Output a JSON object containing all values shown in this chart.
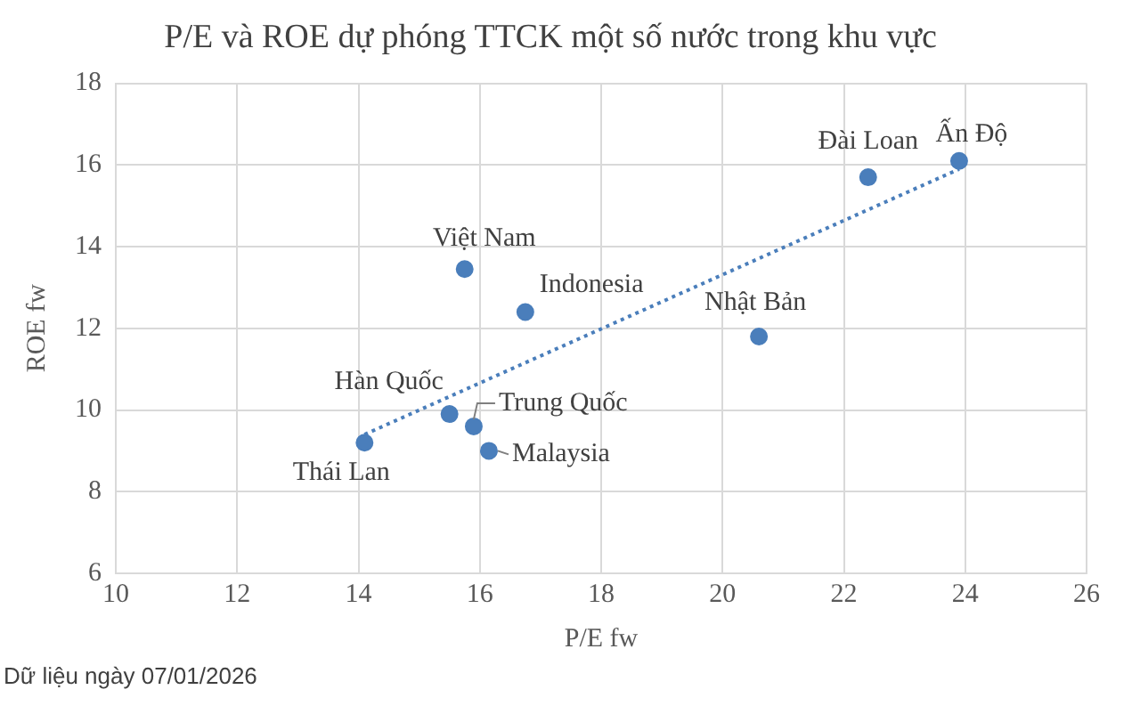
{
  "chart_data": {
    "type": "scatter",
    "title": "P/E và ROE dự phóng TTCK một số nước trong khu vực",
    "xlabel": "P/E fw",
    "ylabel": "ROE fw",
    "xlim": [
      10,
      26
    ],
    "xticks": [
      10,
      12,
      14,
      16,
      18,
      20,
      22,
      24,
      26
    ],
    "ylim": [
      6,
      18
    ],
    "yticks": [
      6,
      8,
      10,
      12,
      14,
      16,
      18
    ],
    "grid": true,
    "legend": false,
    "marker": "circle",
    "series": [
      {
        "type": "scatter",
        "color": "#4a7ebb",
        "x": [
          14.1,
          15.5,
          15.9,
          16.15,
          15.75,
          16.75,
          20.6,
          22.4,
          23.9
        ],
        "values": [
          9.2,
          9.9,
          9.6,
          9.0,
          13.45,
          12.4,
          11.8,
          15.7,
          16.1
        ]
      },
      {
        "type": "line",
        "color": "#4a7ebb",
        "line_style": "dotted",
        "marker": "none",
        "x": [
          14.1,
          23.9
        ],
        "values": [
          9.4,
          15.9
        ]
      }
    ],
    "annotations": [
      {
        "text": "Thái Lan",
        "x": 14.1,
        "y": 9.2
      },
      {
        "text": "Hàn Quốc",
        "x": 15.5,
        "y": 9.9
      },
      {
        "text": "Trung Quốc",
        "x": 15.9,
        "y": 9.6
      },
      {
        "text": "Malaysia",
        "x": 16.15,
        "y": 9.0
      },
      {
        "text": "Việt Nam",
        "x": 15.75,
        "y": 13.45
      },
      {
        "text": "Indonesia",
        "x": 16.75,
        "y": 12.4
      },
      {
        "text": "Nhật Bản",
        "x": 20.6,
        "y": 11.8
      },
      {
        "text": "Đài Loan",
        "x": 22.4,
        "y": 15.7
      },
      {
        "text": "Ấn Độ",
        "x": 23.9,
        "y": 16.1
      },
      "Dữ liệu ngày 07/01/2026"
    ]
  }
}
